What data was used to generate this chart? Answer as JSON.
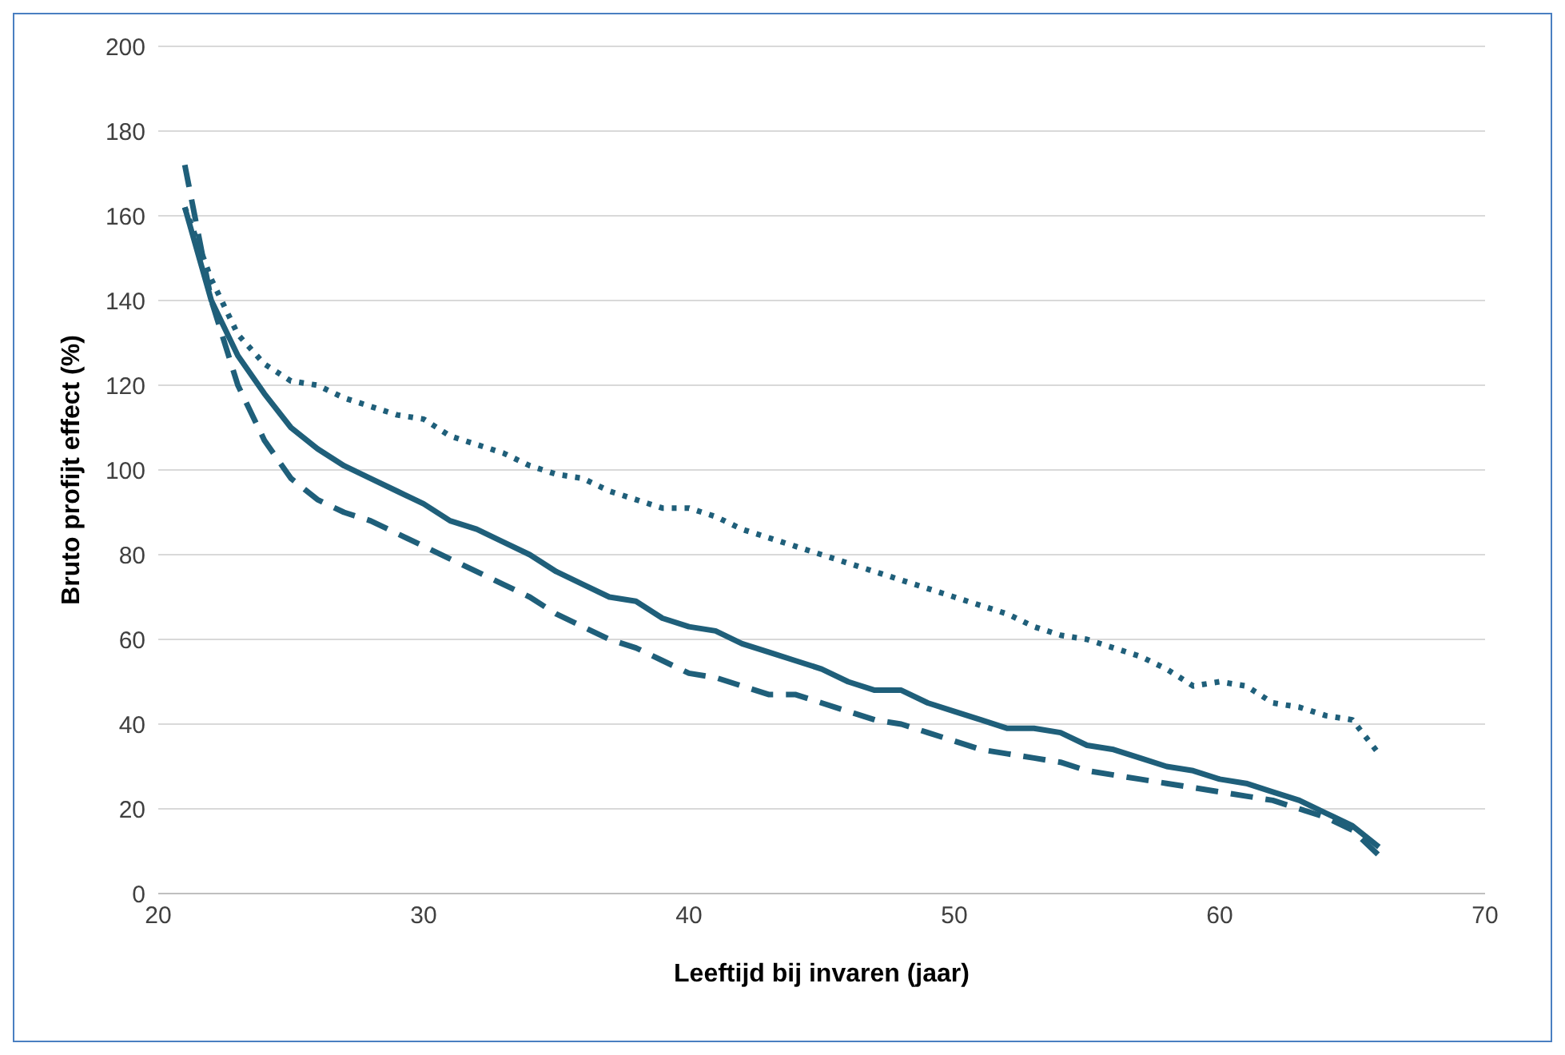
{
  "chart_data": {
    "type": "line",
    "xlabel": "Leeftijd bij invaren (jaar)",
    "ylabel": "Bruto profijt effect (%)",
    "x": [
      21,
      22,
      23,
      24,
      25,
      26,
      27,
      28,
      29,
      30,
      31,
      32,
      33,
      34,
      35,
      36,
      37,
      38,
      39,
      40,
      41,
      42,
      43,
      44,
      45,
      46,
      47,
      48,
      49,
      50,
      51,
      52,
      53,
      54,
      55,
      56,
      57,
      58,
      59,
      60,
      61,
      62,
      63,
      64,
      65,
      66
    ],
    "series": [
      {
        "color": "#1f5f7a",
        "line_style": "solid",
        "values": [
          162,
          140,
          127,
          118,
          110,
          105,
          101,
          98,
          95,
          92,
          88,
          86,
          83,
          80,
          76,
          73,
          70,
          69,
          65,
          63,
          62,
          59,
          57,
          55,
          53,
          50,
          48,
          48,
          45,
          43,
          41,
          39,
          39,
          38,
          35,
          34,
          32,
          30,
          29,
          27,
          26,
          24,
          22,
          19,
          16,
          11
        ]
      },
      {
        "color": "#1f5f7a",
        "line_style": "dashed",
        "values": [
          172,
          140,
          120,
          107,
          98,
          93,
          90,
          88,
          85,
          82,
          79,
          76,
          73,
          70,
          66,
          63,
          60,
          58,
          55,
          52,
          51,
          49,
          47,
          47,
          45,
          43,
          41,
          40,
          38,
          36,
          34,
          33,
          32,
          31,
          29,
          28,
          27,
          26,
          25,
          24,
          23,
          22,
          20,
          18,
          15,
          9
        ]
      },
      {
        "color": "#1f5f7a",
        "line_style": "dotted",
        "values": [
          162,
          145,
          132,
          125,
          121,
          120,
          117,
          115,
          113,
          112,
          108,
          106,
          104,
          101,
          99,
          98,
          95,
          93,
          91,
          91,
          89,
          86,
          84,
          82,
          80,
          78,
          76,
          74,
          72,
          70,
          68,
          66,
          63,
          61,
          60,
          58,
          56,
          53,
          49,
          50,
          49,
          45,
          44,
          42,
          41,
          33
        ]
      }
    ],
    "xlim": [
      20,
      70
    ],
    "xticks": [
      20,
      30,
      40,
      50,
      60,
      70
    ],
    "ylim": [
      0,
      200
    ],
    "yticks": [
      0,
      20,
      40,
      60,
      80,
      100,
      120,
      140,
      160,
      180,
      200
    ],
    "grid": "y",
    "marker": "none"
  }
}
